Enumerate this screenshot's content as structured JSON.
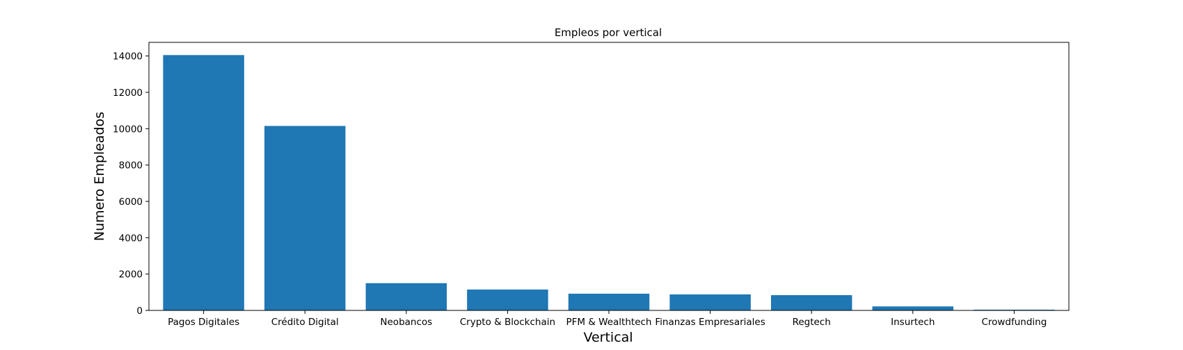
{
  "chart_data": {
    "type": "bar",
    "title": "Empleos por vertical",
    "xlabel": "Vertical",
    "ylabel": "Numero Empleados",
    "categories": [
      "Pagos Digitales",
      "Crédito Digital",
      "Neobancos",
      "Crypto & Blockchain",
      "PFM & Wealthtech",
      "Finanzas Empresariales",
      "Regtech",
      "Insurtech",
      "Crowdfunding"
    ],
    "values": [
      14050,
      10150,
      1500,
      1150,
      920,
      880,
      840,
      220,
      40
    ],
    "ylim": [
      0,
      14750
    ],
    "yticks": [
      0,
      2000,
      4000,
      6000,
      8000,
      10000,
      12000,
      14000
    ],
    "grid": false,
    "bar_color": "#1f77b4"
  }
}
